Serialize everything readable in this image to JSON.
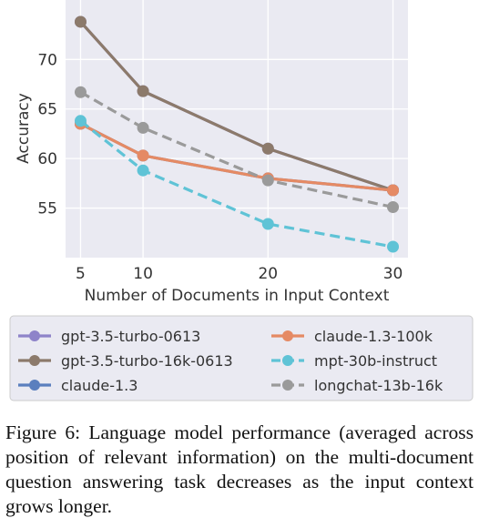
{
  "chart_data": {
    "type": "line",
    "x": [
      5,
      10,
      20,
      30
    ],
    "xlabel": "Number of Documents in Input Context",
    "ylabel": "Accuracy",
    "xticks": [
      5,
      10,
      20,
      30
    ],
    "yticks": [
      55,
      60,
      65,
      70
    ],
    "xlim": [
      3.8,
      31.2
    ],
    "ylim": [
      50.0,
      76.0
    ],
    "grid": true,
    "legend_position": "bottom",
    "series": [
      {
        "name": "gpt-3.5-turbo-0613",
        "values": [
          73.8,
          66.8,
          61.0,
          56.8
        ],
        "color": "#8e83c9",
        "dashed": false
      },
      {
        "name": "gpt-3.5-turbo-16k-0613",
        "values": [
          73.8,
          66.8,
          61.0,
          56.8
        ],
        "color": "#8c7a6b",
        "dashed": false
      },
      {
        "name": "claude-1.3",
        "values": [
          63.5,
          60.3,
          58.0,
          56.8
        ],
        "color": "#5a7fbe",
        "dashed": false
      },
      {
        "name": "claude-1.3-100k",
        "values": [
          63.5,
          60.3,
          58.0,
          56.8
        ],
        "color": "#e58a64",
        "dashed": false
      },
      {
        "name": "mpt-30b-instruct",
        "values": [
          63.8,
          58.8,
          53.4,
          51.1
        ],
        "color": "#5fc3d6",
        "dashed": true
      },
      {
        "name": "longchat-13b-16k",
        "values": [
          66.7,
          63.1,
          57.8,
          55.1
        ],
        "color": "#9a9a9a",
        "dashed": true
      }
    ]
  },
  "caption": "Figure 6: Language model performance (averaged across position of relevant information) on the multi-document question answering task decreases as the input context grows longer."
}
